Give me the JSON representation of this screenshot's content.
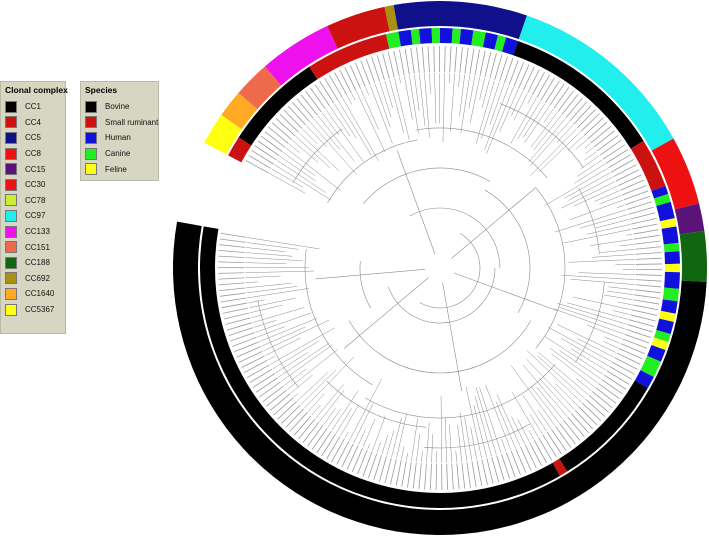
{
  "legends": {
    "clonal_complex": {
      "title": "Clonal complex",
      "items": [
        {
          "label": "CC1",
          "color": "#000000"
        },
        {
          "label": "CC4",
          "color": "#cc1111"
        },
        {
          "label": "CC5",
          "color": "#10108a"
        },
        {
          "label": "CC8",
          "color": "#ee1111"
        },
        {
          "label": "CC15",
          "color": "#5a1478"
        },
        {
          "label": "CC30",
          "color": "#ee1111"
        },
        {
          "label": "CC78",
          "color": "#ccee33"
        },
        {
          "label": "CC97",
          "color": "#22eeee"
        },
        {
          "label": "CC133",
          "color": "#ee11ee"
        },
        {
          "label": "CC151",
          "color": "#ee6a4a"
        },
        {
          "label": "CC188",
          "color": "#116611"
        },
        {
          "label": "CC692",
          "color": "#a89010"
        },
        {
          "label": "CC1640",
          "color": "#ffaa22"
        },
        {
          "label": "CC5367",
          "color": "#ffff11"
        }
      ]
    },
    "species": {
      "title": "Species",
      "items": [
        {
          "label": "Bovine",
          "color": "#000000"
        },
        {
          "label": "Small ruminant",
          "color": "#cc1111"
        },
        {
          "label": "Human",
          "color": "#1111dd"
        },
        {
          "label": "Canine",
          "color": "#22ee22"
        },
        {
          "label": "Feline",
          "color": "#ffff11"
        }
      ]
    }
  }
}
